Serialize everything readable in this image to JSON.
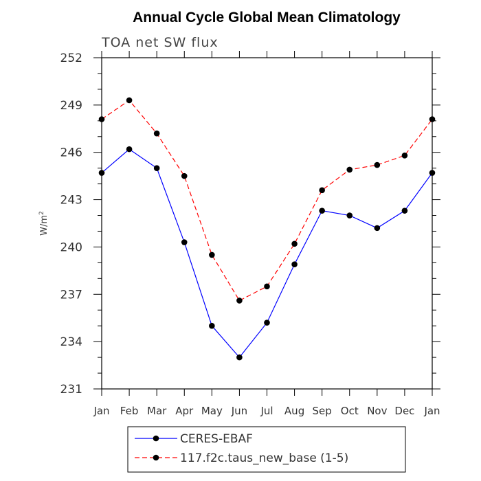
{
  "chart_data": {
    "type": "line",
    "title": "Annual Cycle Global Mean Climatology",
    "subtitle": "TOA net SW flux",
    "xlabel": "",
    "ylabel": "W/m",
    "ylabel_superscript": "2",
    "categories": [
      "Jan",
      "Feb",
      "Mar",
      "Apr",
      "May",
      "Jun",
      "Jul",
      "Aug",
      "Sep",
      "Oct",
      "Nov",
      "Dec",
      "Jan"
    ],
    "ylim": [
      231,
      252
    ],
    "yticks": [
      231,
      234,
      237,
      240,
      243,
      246,
      249,
      252
    ],
    "y_minor_step": 1,
    "grid": false,
    "legend_position": "bottom",
    "series": [
      {
        "name": "CERES-EBAF",
        "color": "#0000ff",
        "dashed": false,
        "values": [
          244.7,
          246.2,
          245.0,
          240.3,
          235.0,
          233.0,
          235.2,
          238.9,
          242.3,
          242.0,
          241.2,
          242.3,
          244.7
        ]
      },
      {
        "name": "117.f2c.taus_new_base (1-5)",
        "color": "#ff0000",
        "dashed": true,
        "values": [
          248.1,
          249.3,
          247.2,
          244.5,
          239.5,
          236.6,
          237.5,
          240.2,
          243.6,
          244.9,
          245.2,
          245.8,
          248.1
        ]
      }
    ]
  }
}
